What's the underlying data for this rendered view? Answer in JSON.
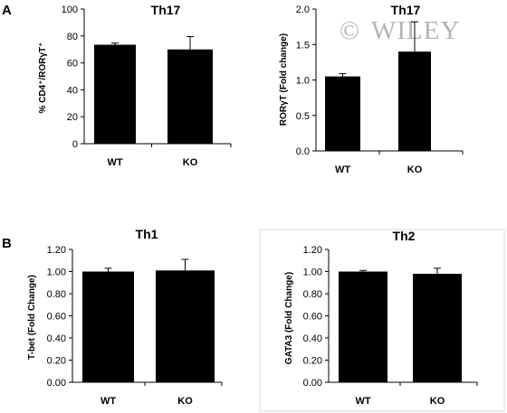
{
  "panels": {
    "a": "A",
    "b": "B"
  },
  "watermark": {
    "symbol": "©",
    "text": "WILEY",
    "color": "#b4b4b4"
  },
  "bar_color": "#000000",
  "chart_data": [
    {
      "type": "bar",
      "title": "Th17",
      "ylabel": "% CD4⁺/RORγT⁺",
      "categories": [
        "WT",
        "KO"
      ],
      "values": [
        73.5,
        70
      ],
      "error": [
        1.2,
        9.5
      ],
      "ylim": [
        0,
        100
      ],
      "yticks": [
        "0",
        "20",
        "40",
        "60",
        "80",
        "100"
      ],
      "grid": false
    },
    {
      "type": "bar",
      "title": "Th17",
      "ylabel": "RORγT (Fold change)",
      "categories": [
        "WT",
        "KO"
      ],
      "values": [
        1.05,
        1.4
      ],
      "error": [
        0.04,
        0.42
      ],
      "ylim": [
        0,
        2.0
      ],
      "yticks": [
        "0.0",
        "0.5",
        "1.0",
        "1.5",
        "2.0"
      ],
      "grid": false
    },
    {
      "type": "bar",
      "title": "Th1",
      "ylabel": "T-bet (Fold Change)",
      "categories": [
        "WT",
        "KO"
      ],
      "values": [
        1.0,
        1.01
      ],
      "error": [
        0.03,
        0.1
      ],
      "ylim": [
        0,
        1.2
      ],
      "yticks": [
        "0.00",
        "0.20",
        "0.40",
        "0.60",
        "0.80",
        "1.00",
        "1.20"
      ],
      "grid": false
    },
    {
      "type": "bar",
      "title": "Th2",
      "ylabel": "GATA3 (Fold Change)",
      "categories": [
        "WT",
        "KO"
      ],
      "values": [
        1.0,
        0.98
      ],
      "error": [
        0.01,
        0.05
      ],
      "ylim": [
        0,
        1.2
      ],
      "yticks": [
        "0.00",
        "0.20",
        "0.40",
        "0.60",
        "0.80",
        "1.00",
        "1.20"
      ],
      "grid": false
    }
  ]
}
